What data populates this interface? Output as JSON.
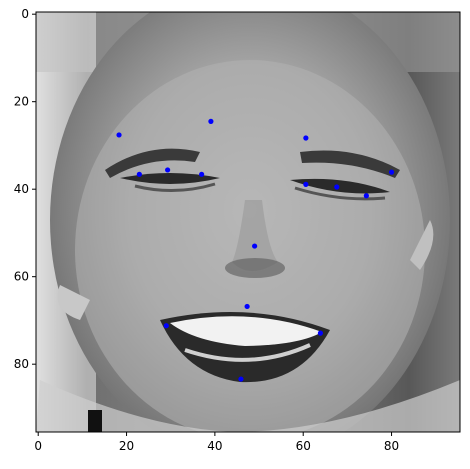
{
  "chart_data": {
    "type": "scatter",
    "title": "",
    "xlabel": "",
    "ylabel": "",
    "xlim": [
      -0.5,
      95.5
    ],
    "ylim": [
      95.5,
      -0.5
    ],
    "y_axis_inverted": true,
    "grid": false,
    "legend": "none",
    "background_image": "grayscale-face-photo",
    "x_ticks": [
      0,
      20,
      40,
      60,
      80
    ],
    "y_ticks": [
      0,
      20,
      40,
      60,
      80
    ],
    "x_tick_labels": [
      "0",
      "20",
      "40",
      "60",
      "80"
    ],
    "y_tick_labels": [
      "0",
      "20",
      "40",
      "60",
      "80"
    ],
    "marker_color": "#0000ff",
    "series": [
      {
        "points": [
          {
            "x": 18.3,
            "y": 27.6
          },
          {
            "x": 39.1,
            "y": 24.5
          },
          {
            "x": 60.6,
            "y": 28.3
          },
          {
            "x": 80.0,
            "y": 36.1
          },
          {
            "x": 22.9,
            "y": 36.6
          },
          {
            "x": 29.3,
            "y": 35.6
          },
          {
            "x": 37.0,
            "y": 36.6
          },
          {
            "x": 60.6,
            "y": 38.9
          },
          {
            "x": 67.6,
            "y": 39.5
          },
          {
            "x": 74.3,
            "y": 41.5
          },
          {
            "x": 49.0,
            "y": 53.0
          },
          {
            "x": 47.3,
            "y": 66.8
          },
          {
            "x": 29.0,
            "y": 71.2
          },
          {
            "x": 63.9,
            "y": 72.9
          },
          {
            "x": 45.9,
            "y": 83.4
          }
        ]
      }
    ]
  }
}
